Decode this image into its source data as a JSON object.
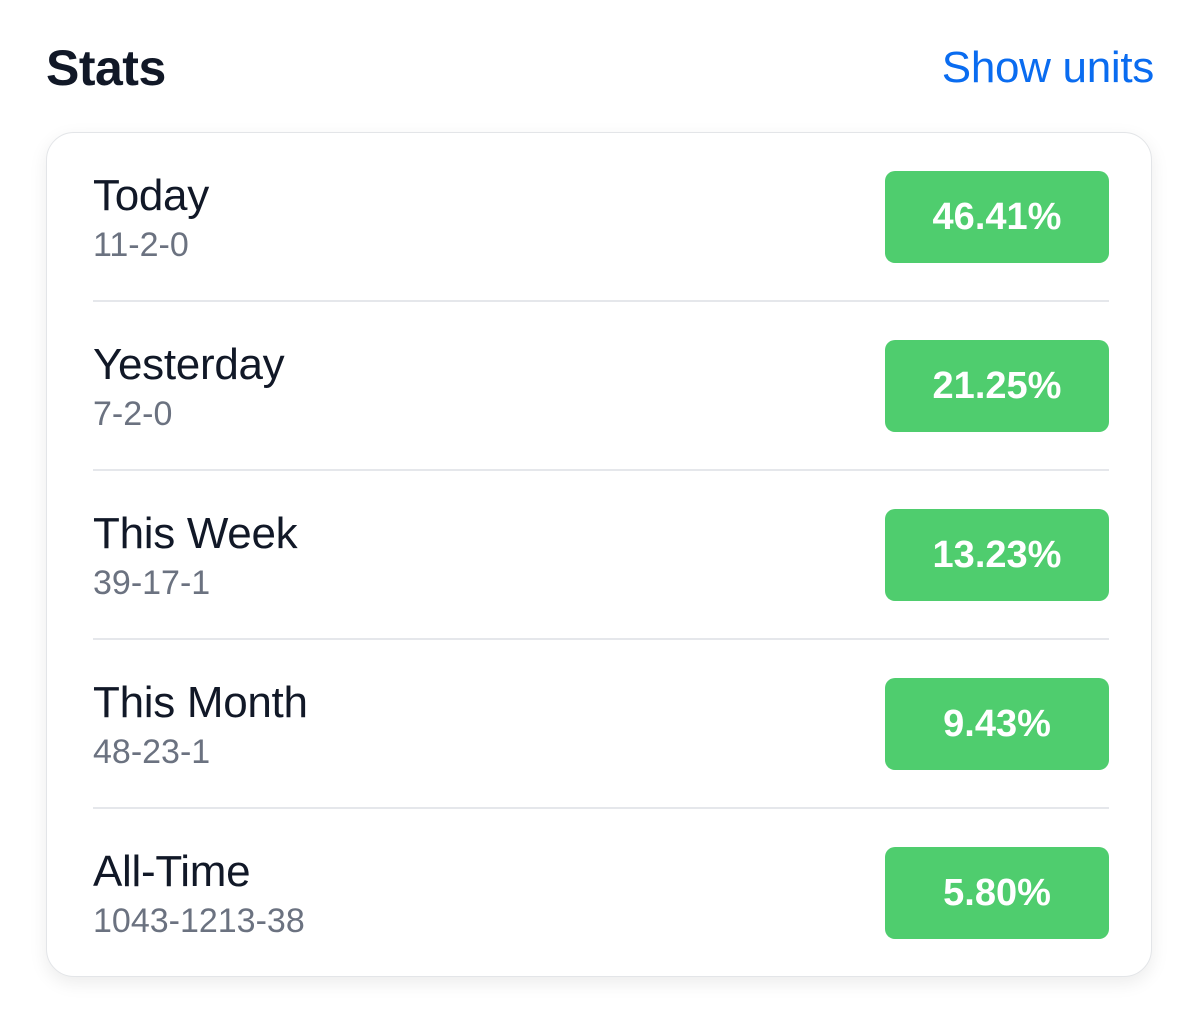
{
  "header": {
    "title": "Stats",
    "action_label": "Show units"
  },
  "colors": {
    "accent_link": "#0a6cf0",
    "badge_green": "#4fcd6e"
  },
  "stats": [
    {
      "period": "Today",
      "record": "11-2-0",
      "percent": "46.41%"
    },
    {
      "period": "Yesterday",
      "record": "7-2-0",
      "percent": "21.25%"
    },
    {
      "period": "This Week",
      "record": "39-17-1",
      "percent": "13.23%"
    },
    {
      "period": "This Month",
      "record": "48-23-1",
      "percent": "9.43%"
    },
    {
      "period": "All-Time",
      "record": "1043-1213-38",
      "percent": "5.80%"
    }
  ]
}
